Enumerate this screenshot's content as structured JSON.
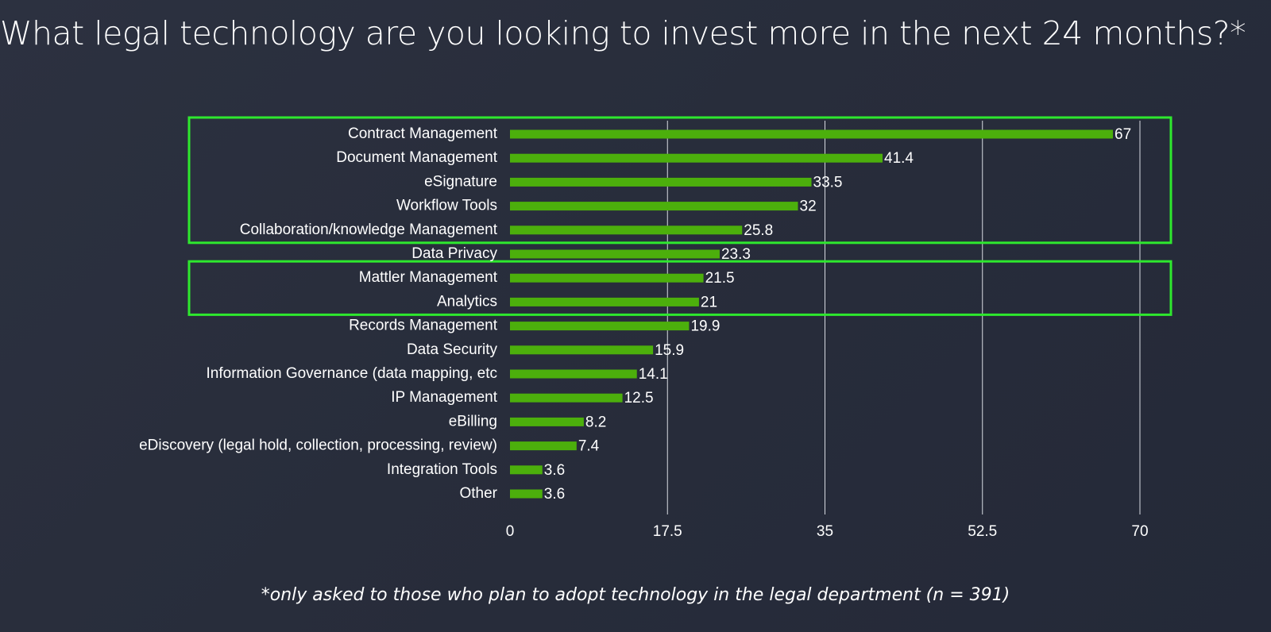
{
  "title": "What legal technology are you looking to invest more in the next 24 months?*",
  "footnote": "*only asked to those who plan to adopt technology in the legal department (n = 391)",
  "colors": {
    "bar": "#4caf0c",
    "highlight_box": "#2ee82e",
    "gridline": "#d8dbe2",
    "text": "#ffffff"
  },
  "chart_data": {
    "type": "bar",
    "orientation": "horizontal",
    "categories": [
      "Contract Management",
      "Document Management",
      "eSignature",
      "Workflow Tools",
      "Collaboration/knowledge Management",
      "Data Privacy",
      "Mattler Management",
      "Analytics",
      "Records Management",
      "Data Security",
      "Information Governance (data mapping, etc",
      "IP Management",
      "eBilling",
      "eDiscovery (legal hold, collection, processing, review)",
      "Integration Tools",
      "Other"
    ],
    "values": [
      67,
      41.4,
      33.5,
      32,
      25.8,
      23.3,
      21.5,
      21,
      19.9,
      15.9,
      14.1,
      12.5,
      8.2,
      7.4,
      3.6,
      3.6
    ],
    "value_labels": [
      "67",
      "41.4",
      "33.5",
      "32",
      "25.8",
      "23.3",
      "21.5",
      "21",
      "19.9",
      "15.9",
      "14.1",
      "12.5",
      "8.2",
      "7.4",
      "3.6",
      "3.6"
    ],
    "xlim": [
      0,
      70
    ],
    "xticks": [
      0,
      17.5,
      35,
      52.5,
      70
    ],
    "xtick_labels": [
      "0",
      "17.5",
      "35",
      "52.5",
      "70"
    ],
    "grid": "vertical",
    "highlight_groups": [
      [
        "Contract Management",
        "Collaboration/knowledge Management"
      ],
      [
        "Mattler Management",
        "Analytics"
      ]
    ]
  }
}
